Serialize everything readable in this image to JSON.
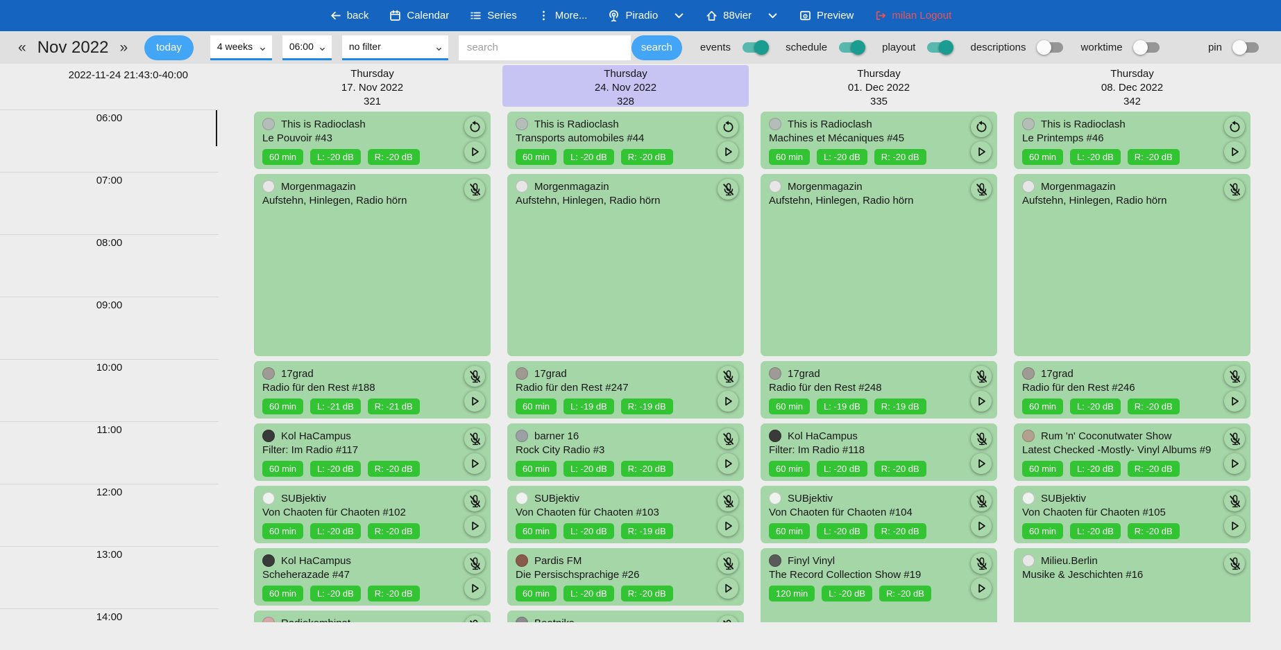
{
  "nav": {
    "items": [
      {
        "icon": "arrow-left-icon",
        "label": "back"
      },
      {
        "icon": "calendar-icon",
        "label": "Calendar"
      },
      {
        "icon": "list-icon",
        "label": "Series"
      },
      {
        "icon": "kebab-icon",
        "label": "More..."
      },
      {
        "icon": "broadcast-icon",
        "label": "Piradio",
        "chevron": true
      },
      {
        "icon": "home-icon",
        "label": "88vier",
        "chevron": true
      },
      {
        "icon": "preview-icon",
        "label": "Preview"
      },
      {
        "icon": "logout-icon",
        "label": "milan Logout",
        "danger": true
      }
    ]
  },
  "toolbar": {
    "prev": "«",
    "month": "Nov 2022",
    "next": "»",
    "today_label": "today",
    "range_select": "4 weeks",
    "time_select": "06:00",
    "filter_select": "no filter",
    "search_placeholder": "search",
    "search_label": "search",
    "toggles": [
      {
        "label": "events",
        "on": true
      },
      {
        "label": "schedule",
        "on": true
      },
      {
        "label": "playout",
        "on": true
      },
      {
        "label": "descriptions",
        "on": false
      },
      {
        "label": "worktime",
        "on": false
      },
      {
        "label": "pin",
        "on": false,
        "far_right": true
      }
    ]
  },
  "calendar": {
    "timestamp": "2022-11-24 21:43:0-40:00",
    "hours": [
      "06:00",
      "07:00",
      "08:00",
      "09:00",
      "10:00",
      "11:00",
      "12:00",
      "13:00",
      "14:00"
    ],
    "columns": [
      {
        "day": "Thursday",
        "date": "17. Nov 2022",
        "number": "321",
        "selected": false,
        "events": [
          {
            "show": "This is Radioclash",
            "episode": "Le Pouvoir #43",
            "badges": [
              "60 min",
              "L: -20 dB",
              "R: -20 dB"
            ],
            "buttons": [
              "replay-icon",
              "play-icon"
            ],
            "start": 6,
            "hours": 1,
            "avatar": "#b5bdb9"
          },
          {
            "show": "Morgenmagazin",
            "episode": "Aufstehn, Hinlegen, Radio hörn",
            "badges": [],
            "buttons": [
              "mic-off-icon"
            ],
            "start": 7,
            "hours": 3,
            "avatar": "#e6e6e6"
          },
          {
            "show": "17grad",
            "episode": "Radio für den Rest #188",
            "badges": [
              "60 min",
              "L: -21 dB",
              "R: -21 dB"
            ],
            "buttons": [
              "mic-off-icon",
              "play-icon"
            ],
            "start": 10,
            "hours": 1,
            "avatar": "#a09a94"
          },
          {
            "show": "Kol HaCampus",
            "episode": "Filter: Im Radio #117",
            "badges": [
              "60 min",
              "L: -20 dB",
              "R: -20 dB"
            ],
            "buttons": [
              "mic-off-icon",
              "play-icon"
            ],
            "start": 11,
            "hours": 1,
            "avatar": "#3a3a3a"
          },
          {
            "show": "SUBjektiv",
            "episode": "Von Chaoten für Chaoten #102",
            "badges": [
              "60 min",
              "L: -20 dB",
              "R: -20 dB"
            ],
            "buttons": [
              "mic-off-icon",
              "play-icon"
            ],
            "start": 12,
            "hours": 1,
            "avatar": "#eef3ef"
          },
          {
            "show": "Kol HaCampus",
            "episode": "Scheherazade #47",
            "badges": [
              "60 min",
              "L: -20 dB",
              "R: -20 dB"
            ],
            "buttons": [
              "mic-off-icon",
              "play-icon"
            ],
            "start": 13,
            "hours": 1,
            "avatar": "#3a3a3a"
          },
          {
            "show": "Radiokombinat",
            "episode": "",
            "badges": [],
            "buttons": [
              "mic-off-icon"
            ],
            "start": 14,
            "hours": 1,
            "avatar": "#d4a8a8"
          }
        ]
      },
      {
        "day": "Thursday",
        "date": "24. Nov 2022",
        "number": "328",
        "selected": true,
        "events": [
          {
            "show": "This is Radioclash",
            "episode": "Transports automobiles #44",
            "badges": [
              "60 min",
              "L: -20 dB",
              "R: -20 dB"
            ],
            "buttons": [
              "replay-icon",
              "play-icon"
            ],
            "start": 6,
            "hours": 1,
            "avatar": "#b5bdb9"
          },
          {
            "show": "Morgenmagazin",
            "episode": "Aufstehn, Hinlegen, Radio hörn",
            "badges": [],
            "buttons": [
              "mic-off-icon"
            ],
            "start": 7,
            "hours": 3,
            "avatar": "#e6e6e6"
          },
          {
            "show": "17grad",
            "episode": "Radio für den Rest #247",
            "badges": [
              "60 min",
              "L: -19 dB",
              "R: -19 dB"
            ],
            "buttons": [
              "mic-off-icon",
              "play-icon"
            ],
            "start": 10,
            "hours": 1,
            "avatar": "#a09a94"
          },
          {
            "show": "barner 16",
            "episode": "Rock City Radio #3",
            "badges": [
              "60 min",
              "L: -20 dB",
              "R: -20 dB"
            ],
            "buttons": [
              "mic-off-icon",
              "play-icon"
            ],
            "start": 11,
            "hours": 1,
            "avatar": "#9aa0a4"
          },
          {
            "show": "SUBjektiv",
            "episode": "Von Chaoten für Chaoten #103",
            "badges": [
              "60 min",
              "L: -20 dB",
              "R: -19 dB"
            ],
            "buttons": [
              "mic-off-icon",
              "play-icon"
            ],
            "start": 12,
            "hours": 1,
            "avatar": "#eef3ef"
          },
          {
            "show": "Pardis FM",
            "episode": "Die Persischsprachige #26",
            "badges": [
              "60 min",
              "L: -20 dB",
              "R: -20 dB"
            ],
            "buttons": [
              "mic-off-icon",
              "play-icon"
            ],
            "start": 13,
            "hours": 1,
            "avatar": "#8a5a4a"
          },
          {
            "show": "Beatniks",
            "episode": "",
            "badges": [],
            "buttons": [
              "mic-off-icon"
            ],
            "start": 14,
            "hours": 1,
            "avatar": "#8c8c8c"
          }
        ]
      },
      {
        "day": "Thursday",
        "date": "01. Dec 2022",
        "number": "335",
        "selected": false,
        "events": [
          {
            "show": "This is Radioclash",
            "episode": "Machines et Mécaniques #45",
            "badges": [
              "60 min",
              "L: -20 dB",
              "R: -20 dB"
            ],
            "buttons": [
              "replay-icon",
              "play-icon"
            ],
            "start": 6,
            "hours": 1,
            "avatar": "#b5bdb9"
          },
          {
            "show": "Morgenmagazin",
            "episode": "Aufstehn, Hinlegen, Radio hörn",
            "badges": [],
            "buttons": [
              "mic-off-icon"
            ],
            "start": 7,
            "hours": 3,
            "avatar": "#e6e6e6"
          },
          {
            "show": "17grad",
            "episode": "Radio für den Rest #248",
            "badges": [
              "60 min",
              "L: -19 dB",
              "R: -19 dB"
            ],
            "buttons": [
              "mic-off-icon",
              "play-icon"
            ],
            "start": 10,
            "hours": 1,
            "avatar": "#a09a94"
          },
          {
            "show": "Kol HaCampus",
            "episode": "Filter: Im Radio #118",
            "badges": [
              "60 min",
              "L: -20 dB",
              "R: -20 dB"
            ],
            "buttons": [
              "mic-off-icon",
              "play-icon"
            ],
            "start": 11,
            "hours": 1,
            "avatar": "#3a3a3a"
          },
          {
            "show": "SUBjektiv",
            "episode": "Von Chaoten für Chaoten #104",
            "badges": [
              "60 min",
              "L: -20 dB",
              "R: -20 dB"
            ],
            "buttons": [
              "mic-off-icon",
              "play-icon"
            ],
            "start": 12,
            "hours": 1,
            "avatar": "#eef3ef"
          },
          {
            "show": "Finyl Vinyl",
            "episode": "The Record Collection Show #19",
            "badges": [
              "120 min",
              "L: -20 dB",
              "R: -20 dB"
            ],
            "buttons": [
              "mic-off-icon",
              "play-icon"
            ],
            "start": 13,
            "hours": 2,
            "avatar": "#5a5a5a"
          }
        ]
      },
      {
        "day": "Thursday",
        "date": "08. Dec 2022",
        "number": "342",
        "selected": false,
        "events": [
          {
            "show": "This is Radioclash",
            "episode": "Le Printemps #46",
            "badges": [
              "60 min",
              "L: -20 dB",
              "R: -20 dB"
            ],
            "buttons": [
              "replay-icon",
              "play-icon"
            ],
            "start": 6,
            "hours": 1,
            "avatar": "#b5bdb9"
          },
          {
            "show": "Morgenmagazin",
            "episode": "Aufstehn, Hinlegen, Radio hörn",
            "badges": [],
            "buttons": [
              "mic-off-icon"
            ],
            "start": 7,
            "hours": 3,
            "avatar": "#e6e6e6"
          },
          {
            "show": "17grad",
            "episode": "Radio für den Rest #246",
            "badges": [
              "60 min",
              "L: -20 dB",
              "R: -20 dB"
            ],
            "buttons": [
              "mic-off-icon",
              "play-icon"
            ],
            "start": 10,
            "hours": 1,
            "avatar": "#a09a94"
          },
          {
            "show": "Rum 'n' Coconutwater Show",
            "episode": "Latest Checked -Mostly- Vinyl Albums #9",
            "badges": [
              "60 min",
              "L: -20 dB",
              "R: -20 dB"
            ],
            "buttons": [
              "mic-off-icon",
              "play-icon"
            ],
            "start": 11,
            "hours": 1,
            "avatar": "#b3a08e"
          },
          {
            "show": "SUBjektiv",
            "episode": "Von Chaoten für Chaoten #105",
            "badges": [
              "60 min",
              "L: -20 dB",
              "R: -20 dB"
            ],
            "buttons": [
              "mic-off-icon",
              "play-icon"
            ],
            "start": 12,
            "hours": 1,
            "avatar": "#eef3ef"
          },
          {
            "show": "Milieu.Berlin",
            "episode": "Musike & Jeschichten #16",
            "badges": [],
            "buttons": [
              "mic-off-icon"
            ],
            "start": 13,
            "hours": 2,
            "avatar": "#e8e8e8"
          }
        ]
      }
    ]
  },
  "colors": {
    "nav_bar_blue": "#1565c0",
    "accent_blue": "#42a5f5",
    "select_underline_blue": "#1e88e5",
    "card_green": "#a5d6a7",
    "badge_green": "#33c433",
    "selected_week_purple": "#c7c4f3",
    "toggle_on_teal": "#1b9c90",
    "logout_red": "#ef5350"
  }
}
